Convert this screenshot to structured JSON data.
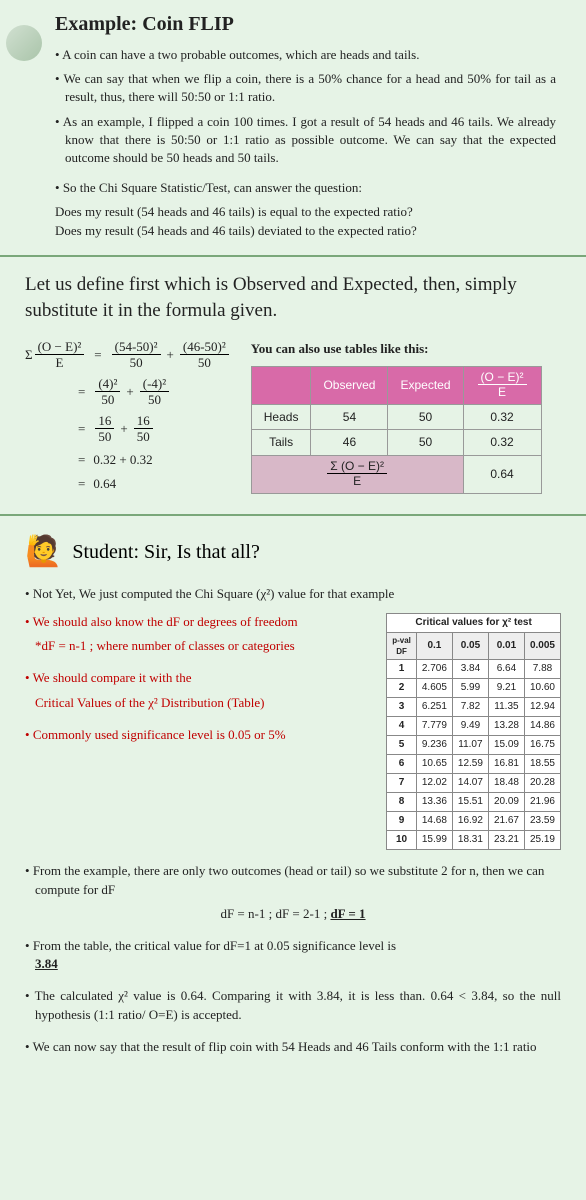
{
  "section1": {
    "title": "Example: Coin FLIP",
    "b1": "A coin can have a two probable outcomes, which are heads and tails.",
    "b2": "We can say that when we flip a coin, there is a 50% chance for a head and 50% for tail as a result, thus, there will 50:50 or 1:1 ratio.",
    "b3": "As an example, I flipped a coin 100 times. I got a result of 54 heads and 46 tails. We already know that there is 50:50 or 1:1 ratio as possible outcome. We can say that the expected outcome should be 50 heads and 50 tails.",
    "b4": "So the Chi Square Statistic/Test, can answer the question:",
    "q1": "Does my result (54 heads and 46 tails) is equal to the expected ratio?",
    "q2": "Does my result (54 heads and 46 tails) deviated to the expected ratio?"
  },
  "section2": {
    "title": "Let us define first which is Observed and Expected, then, simply substitute it in the formula given.",
    "table_label": "You can also use tables like this:",
    "headers": {
      "observed": "Observed",
      "expected": "Expected",
      "chi": "(O − E)²",
      "chiDen": "E"
    },
    "rows": {
      "heads": {
        "label": "Heads",
        "o": "54",
        "e": "50",
        "v": "0.32"
      },
      "tails": {
        "label": "Tails",
        "o": "46",
        "e": "50",
        "v": "0.32"
      },
      "sum": {
        "label": "Σ (O − E)²",
        "labelDen": "E",
        "v": "0.64"
      }
    },
    "calc": {
      "l1n1": "(54-50)²",
      "l1d1": "50",
      "l1n2": "(46-50)²",
      "l1d2": "50",
      "l2n1": "(4)²",
      "l2d1": "50",
      "l2n2": "(-4)²",
      "l2d2": "50",
      "l3n1": "16",
      "l3d1": "50",
      "l3n2": "16",
      "l3d2": "50",
      "l4": "0.32 + 0.32",
      "l5": "0.64",
      "sumLabel": "(O − E)²",
      "sumDen": "E",
      "sigma": "Σ"
    }
  },
  "section3": {
    "student": "Student: Sir, Is that all?",
    "p1": "Not Yet, We just computed the Chi Square (χ²) value for that example",
    "p2a": "We should also know the dF or degrees of freedom",
    "p2b": "*dF = n-1 ; where number of classes or categories",
    "p3a": "We should compare it with the",
    "p3b": "Critical Values of the χ² Distribution (Table)",
    "p4": "Commonly used significance level is 0.05 or 5%",
    "crit_title": "Critical values for χ² test",
    "crit_headers": [
      "p-val\nDF",
      "0.1",
      "0.05",
      "0.01",
      "0.005"
    ],
    "crit_rows": [
      [
        "1",
        "2.706",
        "3.84",
        "6.64",
        "7.88"
      ],
      [
        "2",
        "4.605",
        "5.99",
        "9.21",
        "10.60"
      ],
      [
        "3",
        "6.251",
        "7.82",
        "11.35",
        "12.94"
      ],
      [
        "4",
        "7.779",
        "9.49",
        "13.28",
        "14.86"
      ],
      [
        "5",
        "9.236",
        "11.07",
        "15.09",
        "16.75"
      ],
      [
        "6",
        "10.65",
        "12.59",
        "16.81",
        "18.55"
      ],
      [
        "7",
        "12.02",
        "14.07",
        "18.48",
        "20.28"
      ],
      [
        "8",
        "13.36",
        "15.51",
        "20.09",
        "21.96"
      ],
      [
        "9",
        "14.68",
        "16.92",
        "21.67",
        "23.59"
      ],
      [
        "10",
        "15.99",
        "18.31",
        "23.21",
        "25.19"
      ]
    ],
    "c1": "From the example, there are only two outcomes (head or tail) so we substitute 2 for n, then we can compute for dF",
    "c1f": "dF = n-1  ;  dF = 2-1 ;  ",
    "c1f2": "dF = 1",
    "c2a": "From the table, the critical value for dF=1 at 0.05 significance level is ",
    "c2b": "3.84",
    "c3": "The calculated χ² value is 0.64. Comparing it with 3.84, it is less than. 0.64 < 3.84, so the null hypothesis (1:1 ratio/ O=E) is accepted.",
    "c4": "We can now say that the result of flip coin with 54 Heads and 46 Tails conform with the 1:1 ratio"
  }
}
